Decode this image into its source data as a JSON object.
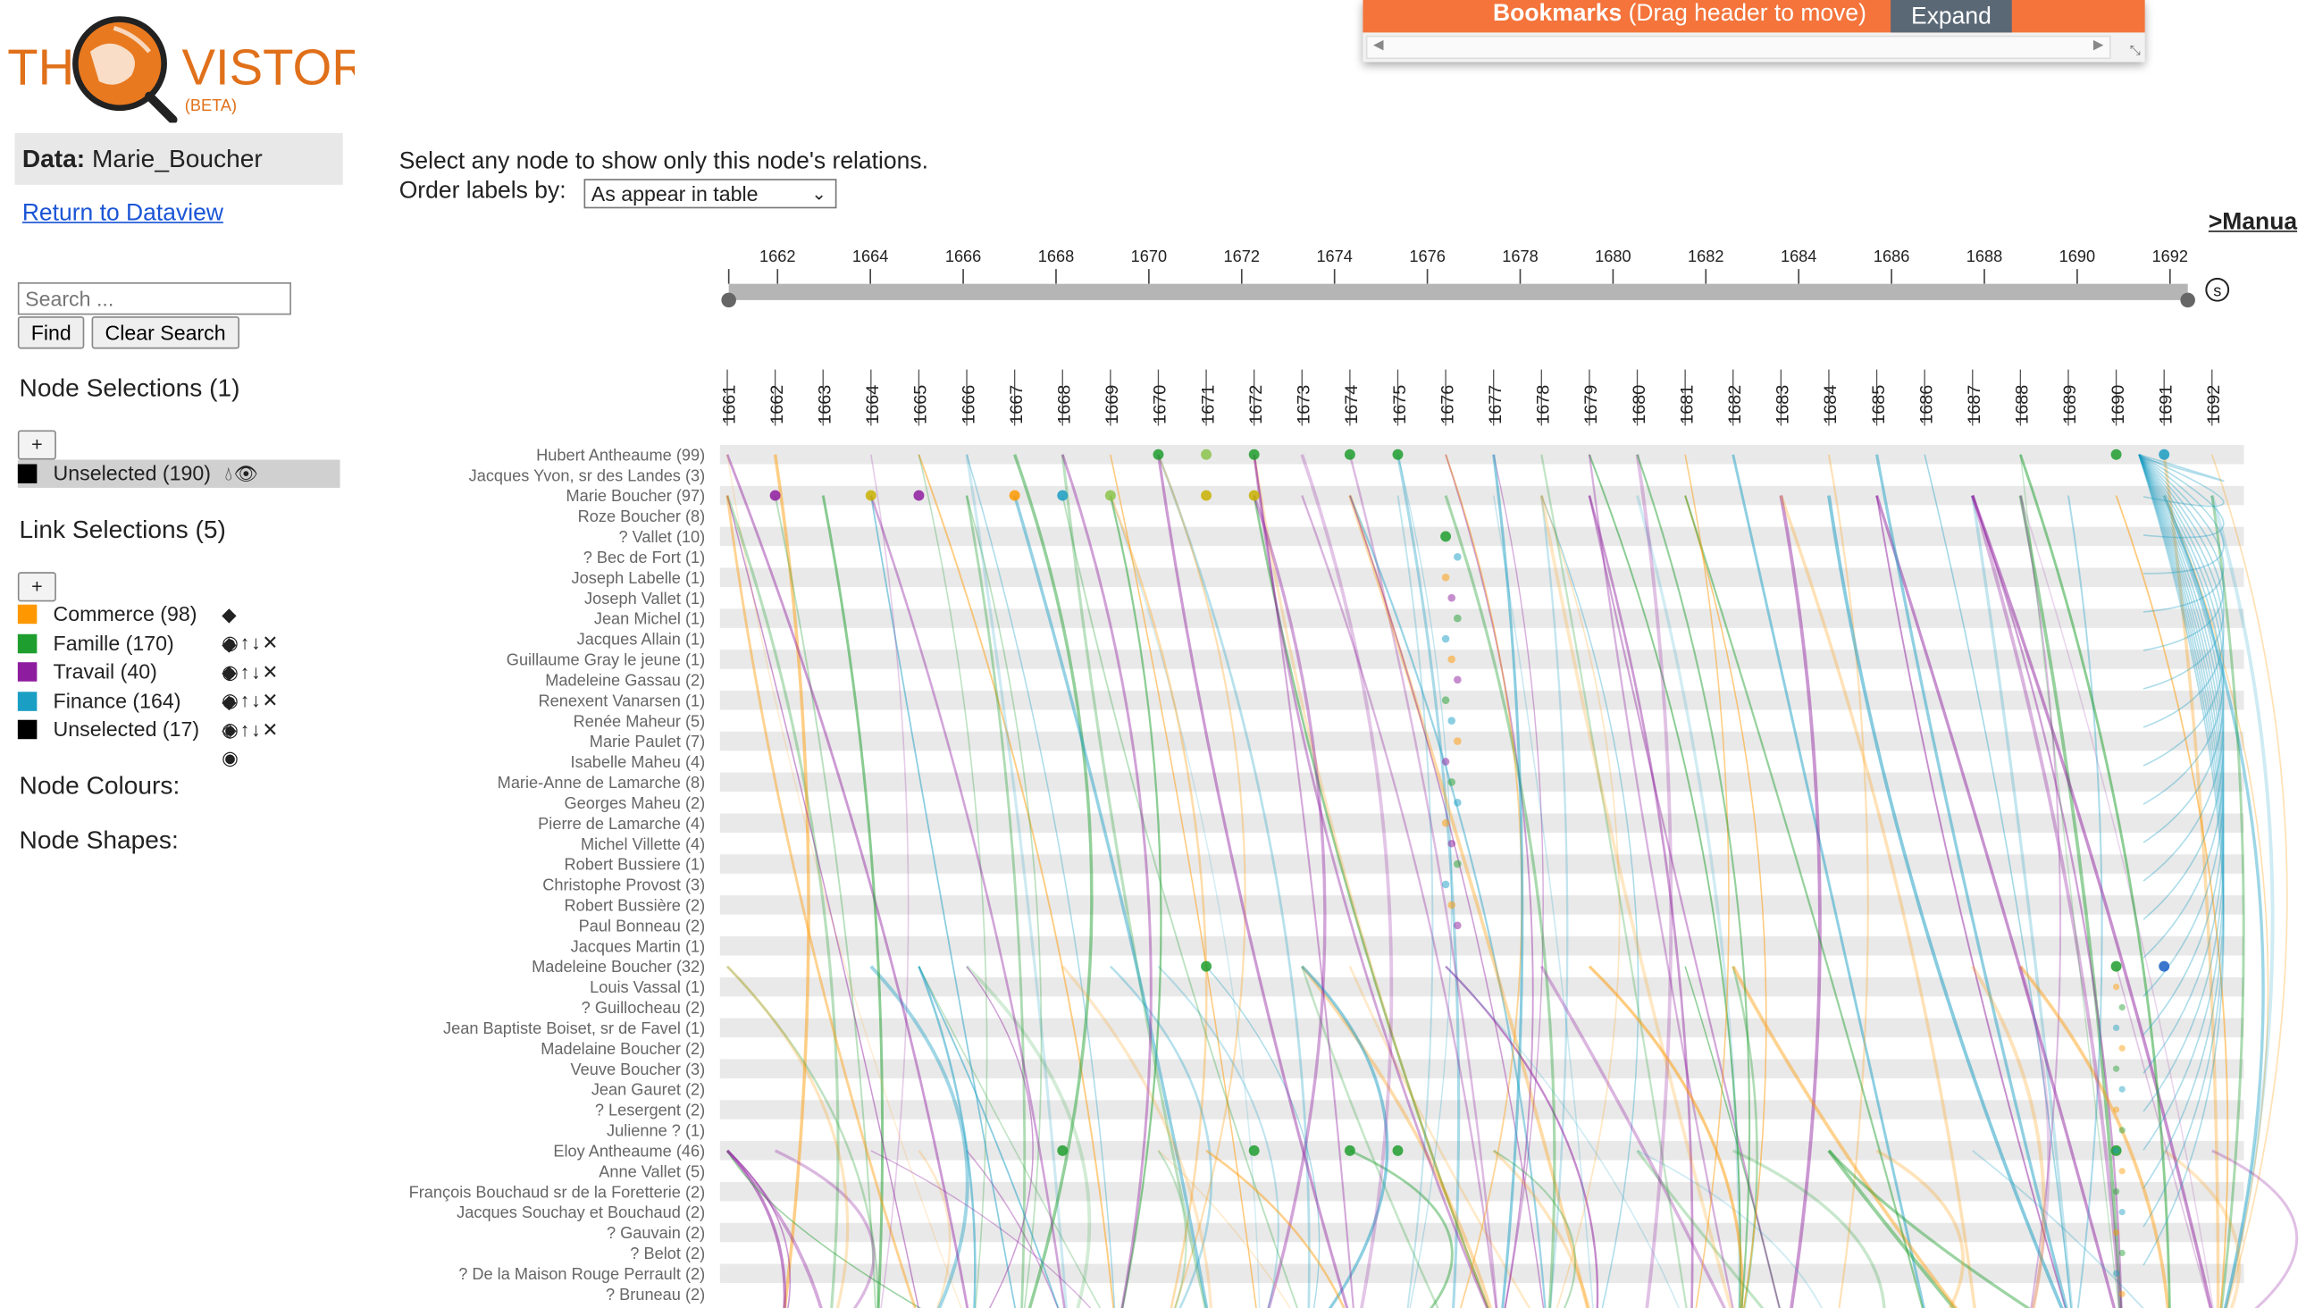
{
  "logo": {
    "word1": "THE",
    "word2": "VISTORIAN",
    "badge": "(BETA)"
  },
  "data_panel": {
    "label": "Data:",
    "value": "Marie_Boucher"
  },
  "return_link": "Return to Dataview",
  "search": {
    "placeholder": "Search ...",
    "find": "Find",
    "clear": "Clear Search"
  },
  "node_selections": {
    "title": "Node Selections (1)",
    "add": "+",
    "items": [
      {
        "label": "Unselected (190)",
        "color": "#000000"
      }
    ]
  },
  "link_selections": {
    "title": "Link Selections (5)",
    "add": "+",
    "items": [
      {
        "label": "Commerce (98)",
        "color": "#ff9800"
      },
      {
        "label": "Famille (170)",
        "color": "#1e9e2e"
      },
      {
        "label": "Travail (40)",
        "color": "#8e1c9e"
      },
      {
        "label": "Finance (164)",
        "color": "#1a9ec4"
      },
      {
        "label": "Unselected (17)",
        "color": "#000000"
      }
    ]
  },
  "node_colours": "Node Colours:",
  "node_shapes": "Node Shapes:",
  "instructions": "Select any node to show only this node's relations.",
  "order": {
    "label": "Order labels by:",
    "value": "As appear in table"
  },
  "manual_link": ">Manua",
  "bookmarks": {
    "title": "Bookmarks",
    "hint": " (Drag header to move)",
    "expand": "Expand"
  },
  "timeline": {
    "ticks": [
      "1662",
      "1664",
      "1666",
      "1668",
      "1670",
      "1672",
      "1674",
      "1676",
      "1678",
      "1680",
      "1682",
      "1684",
      "1686",
      "1688",
      "1690",
      "1692"
    ],
    "handle_icon": "s-circle-icon"
  },
  "years": [
    "1661",
    "1662",
    "1663",
    "1664",
    "1665",
    "1666",
    "1667",
    "1668",
    "1669",
    "1670",
    "1671",
    "1672",
    "1673",
    "1674",
    "1675",
    "1676",
    "1677",
    "1678",
    "1679",
    "1680",
    "1681",
    "1682",
    "1683",
    "1684",
    "1685",
    "1686",
    "1687",
    "1688",
    "1689",
    "1690",
    "1691",
    "1692"
  ],
  "nodes": [
    "Hubert Antheaume (99)",
    "Jacques Yvon, sr des Landes (3)",
    "Marie Boucher (97)",
    "Roze Boucher (8)",
    "? Vallet (10)",
    "? Bec de Fort (1)",
    "Joseph Labelle (1)",
    "Joseph Vallet (1)",
    "Jean Michel (1)",
    "Jacques Allain (1)",
    "Guillaume Gray le jeune (1)",
    "Madeleine Gassau (2)",
    "Renexent Vanarsen (1)",
    "Renée Maheur (5)",
    "Marie Paulet (7)",
    "Isabelle Maheu (4)",
    "Marie-Anne de Lamarche (8)",
    "Georges Maheu (2)",
    "Pierre de Lamarche (4)",
    "Michel Villette (4)",
    "Robert Bussiere (1)",
    "Christophe Provost (3)",
    "Robert Bussière (2)",
    "Paul Bonneau (2)",
    "Jacques Martin (1)",
    "Madeleine Boucher (32)",
    "Louis Vassal (1)",
    "? Guillocheau (2)",
    "Jean Baptiste Boiset, sr de Favel (1)",
    "Madelaine Boucher (2)",
    "Veuve Boucher (3)",
    "Jean Gauret (2)",
    "? Lesergent (2)",
    "Julienne ? (1)",
    "Eloy Antheaume (46)",
    "Anne Vallet (5)",
    "François Bouchaud sr de la Foretterie (2)",
    "Jacques Souchay et Bouchaud (2)",
    "? Gauvain (2)",
    "? Belot (2)",
    "? De la Maison Rouge Perrault (2)",
    "? Bruneau (2)"
  ]
}
